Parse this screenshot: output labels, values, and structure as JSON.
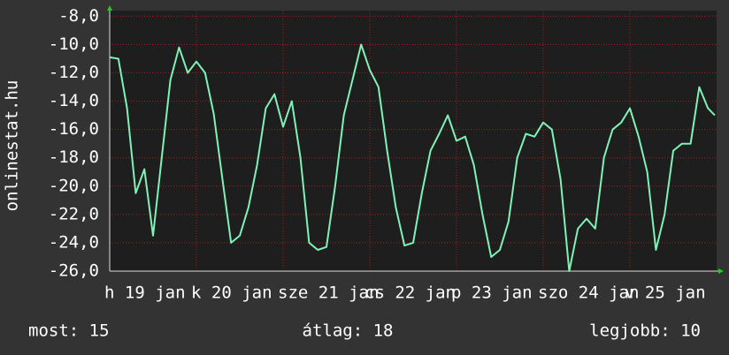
{
  "chart_data": {
    "type": "line",
    "ylabel": "onlinestat.hu",
    "annotations": [
      "most: 15",
      "átlag: 18",
      "legjobb: 10"
    ],
    "x": [
      0,
      0.1,
      0.2,
      0.3,
      0.4,
      0.5,
      0.6,
      0.7,
      0.8,
      0.9,
      1.0,
      1.1,
      1.2,
      1.3,
      1.4,
      1.5,
      1.6,
      1.7,
      1.8,
      1.9,
      2.0,
      2.1,
      2.2,
      2.3,
      2.4,
      2.5,
      2.6,
      2.7,
      2.8,
      2.9,
      3.0,
      3.1,
      3.2,
      3.3,
      3.4,
      3.5,
      3.6,
      3.7,
      3.8,
      3.9,
      4.0,
      4.1,
      4.2,
      4.3,
      4.4,
      4.5,
      4.6,
      4.7,
      4.8,
      4.9,
      5.0,
      5.1,
      5.2,
      5.3,
      5.4,
      5.5,
      5.6,
      5.7,
      5.8,
      5.9,
      6.0,
      6.1,
      6.2,
      6.3,
      6.4,
      6.5,
      6.6,
      6.7,
      6.8,
      6.9,
      6.98
    ],
    "series": [
      {
        "color": "#7ff2b8",
        "values": [
          -10.9,
          -11.0,
          -14.5,
          -20.5,
          -18.8,
          -23.5,
          -18.0,
          -12.5,
          -10.2,
          -12.0,
          -11.2,
          -12.0,
          -14.9,
          -19.5,
          -24.0,
          -23.5,
          -21.5,
          -18.5,
          -14.5,
          -13.5,
          -15.8,
          -14.0,
          -18.0,
          -24.0,
          -24.5,
          -24.3,
          -20.0,
          -15.0,
          -12.5,
          -10.0,
          -11.8,
          -13.0,
          -17.5,
          -21.5,
          -24.2,
          -24.0,
          -20.5,
          -17.5,
          -16.3,
          -15.0,
          -16.8,
          -16.5,
          -18.5,
          -22.0,
          -25.0,
          -24.5,
          -22.5,
          -18.0,
          -16.3,
          -16.5,
          -15.5,
          -16.0,
          -19.5,
          -26.0,
          -23.0,
          -22.3,
          -23.0,
          -18.0,
          -16.0,
          -15.5,
          -14.5,
          -16.5,
          -19.0,
          -24.5,
          -22.0,
          -17.5,
          -17.0,
          -17.0,
          -13.0,
          -14.5,
          -15.0
        ]
      }
    ],
    "xlim": [
      0,
      7
    ],
    "xticks": [
      {
        "value": 0,
        "label": "h 19 jan"
      },
      {
        "value": 1,
        "label": "k 20 jan"
      },
      {
        "value": 2,
        "label": "sze 21 jan"
      },
      {
        "value": 3,
        "label": "cs 22 jan"
      },
      {
        "value": 4,
        "label": "p 23 jan"
      },
      {
        "value": 5,
        "label": "szo 24 jan"
      },
      {
        "value": 6,
        "label": "v 25 jan"
      }
    ],
    "ylim": [
      -26,
      -7.6
    ],
    "yticks": [
      {
        "value": -8,
        "label": "-8,0"
      },
      {
        "value": -10,
        "label": "-10,0"
      },
      {
        "value": -12,
        "label": "-12,0"
      },
      {
        "value": -14,
        "label": "-14,0"
      },
      {
        "value": -16,
        "label": "-16,0"
      },
      {
        "value": -18,
        "label": "-18,0"
      },
      {
        "value": -20,
        "label": "-20,0"
      },
      {
        "value": -22,
        "label": "-22,0"
      },
      {
        "value": -24,
        "label": "-24,0"
      },
      {
        "value": -26,
        "label": "-26,0"
      }
    ],
    "grid": true
  }
}
